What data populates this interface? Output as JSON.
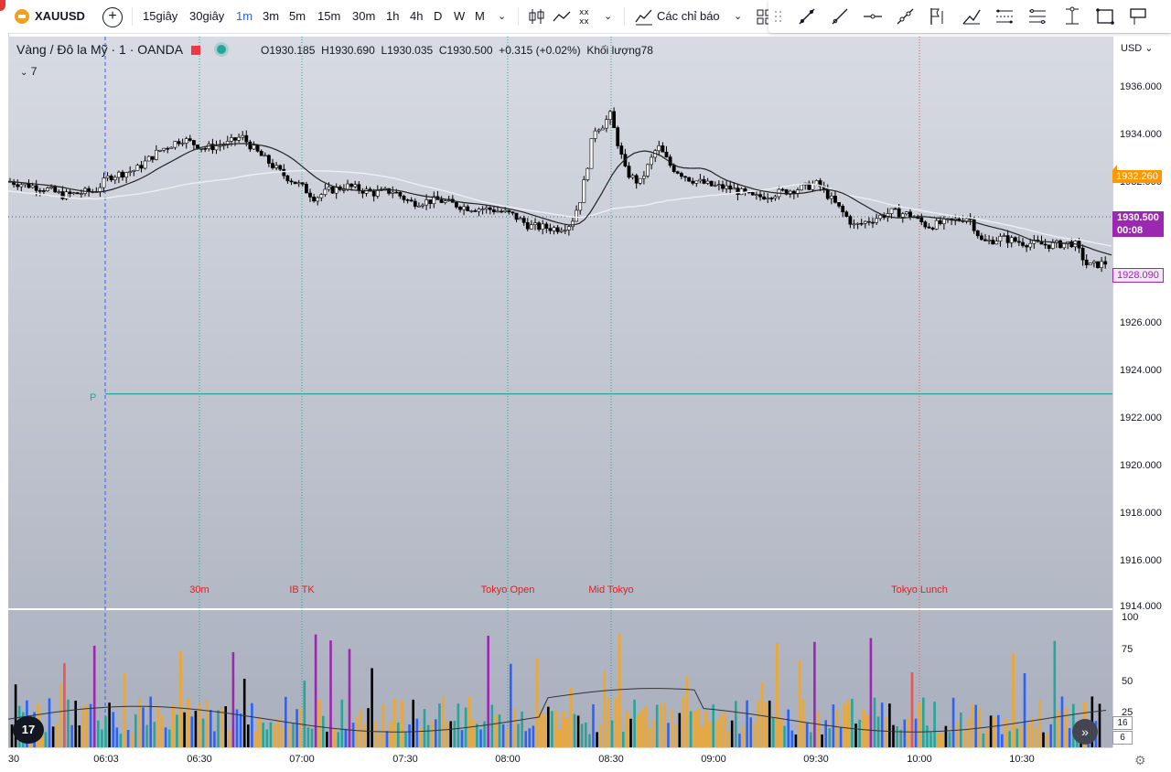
{
  "toolbar": {
    "symbol": "XAUUSD",
    "intervals": [
      {
        "label": "15giây",
        "active": false
      },
      {
        "label": "30giây",
        "active": false
      },
      {
        "label": "1m",
        "active": true
      },
      {
        "label": "3m",
        "active": false
      },
      {
        "label": "5m",
        "active": false
      },
      {
        "label": "15m",
        "active": false
      },
      {
        "label": "30m",
        "active": false
      },
      {
        "label": "1h",
        "active": false
      },
      {
        "label": "4h",
        "active": false
      },
      {
        "label": "D",
        "active": false
      },
      {
        "label": "W",
        "active": false
      },
      {
        "label": "M",
        "active": false
      }
    ],
    "indicators_label": "Các chỉ báo",
    "drawing_tools": [
      "trend-line-icon",
      "ray-icon",
      "horizontal-ray-icon",
      "info-line-icon",
      "fib-icon",
      "brush-icon",
      "parallel-channel-icon",
      "regression-icon",
      "pitchfork-icon",
      "rectangle-icon",
      "callout-icon"
    ]
  },
  "legend": {
    "title": "Vàng / Đô la Mỹ · 1 · OANDA",
    "open": "O1930.185",
    "high": "H1930.690",
    "low": "L1930.035",
    "close": "C1930.500",
    "change": "+0.315 (+0.02%)",
    "volume": "Khối lượng78",
    "indicator_count": "7"
  },
  "price_axis": {
    "currency": "USD",
    "ticks": [
      "1936.000",
      "1934.000",
      "1932.000",
      "1930.000",
      "1928.000",
      "1926.000",
      "1924.000",
      "1922.000",
      "1920.000",
      "1918.000",
      "1916.000",
      "1914.000"
    ],
    "badges": {
      "orange": {
        "value": "1932.260",
        "color": "#ff9800"
      },
      "current": {
        "value": "1930.500",
        "countdown": "00:08",
        "color": "#9c27b0"
      },
      "ma": {
        "value": "1928.090",
        "color": "#9c27b0"
      }
    }
  },
  "volume_axis": {
    "ticks": [
      "100",
      "75",
      "50",
      "25"
    ],
    "badges": [
      "16",
      "6"
    ]
  },
  "time_axis": {
    "labels": [
      "30",
      "06:03",
      "06:30",
      "07:00",
      "07:30",
      "08:00",
      "08:30",
      "09:00",
      "09:30",
      "10:00",
      "10:30"
    ]
  },
  "sessions": [
    {
      "label": "30m"
    },
    {
      "label": "IB TK"
    },
    {
      "label": "Tokyo Open"
    },
    {
      "label": "Mid Tokyo"
    },
    {
      "label": "Tokyo Lunch"
    }
  ],
  "pivot_label": "P",
  "colors": {
    "up": "#ffffff",
    "down": "#000000",
    "ma": "#222222",
    "volume_orange": "#f5a623",
    "volume_green": "#26a69a",
    "volume_blue": "#2962ff",
    "volume_purple": "#9c27b0",
    "volume_red": "#ef5350"
  }
}
